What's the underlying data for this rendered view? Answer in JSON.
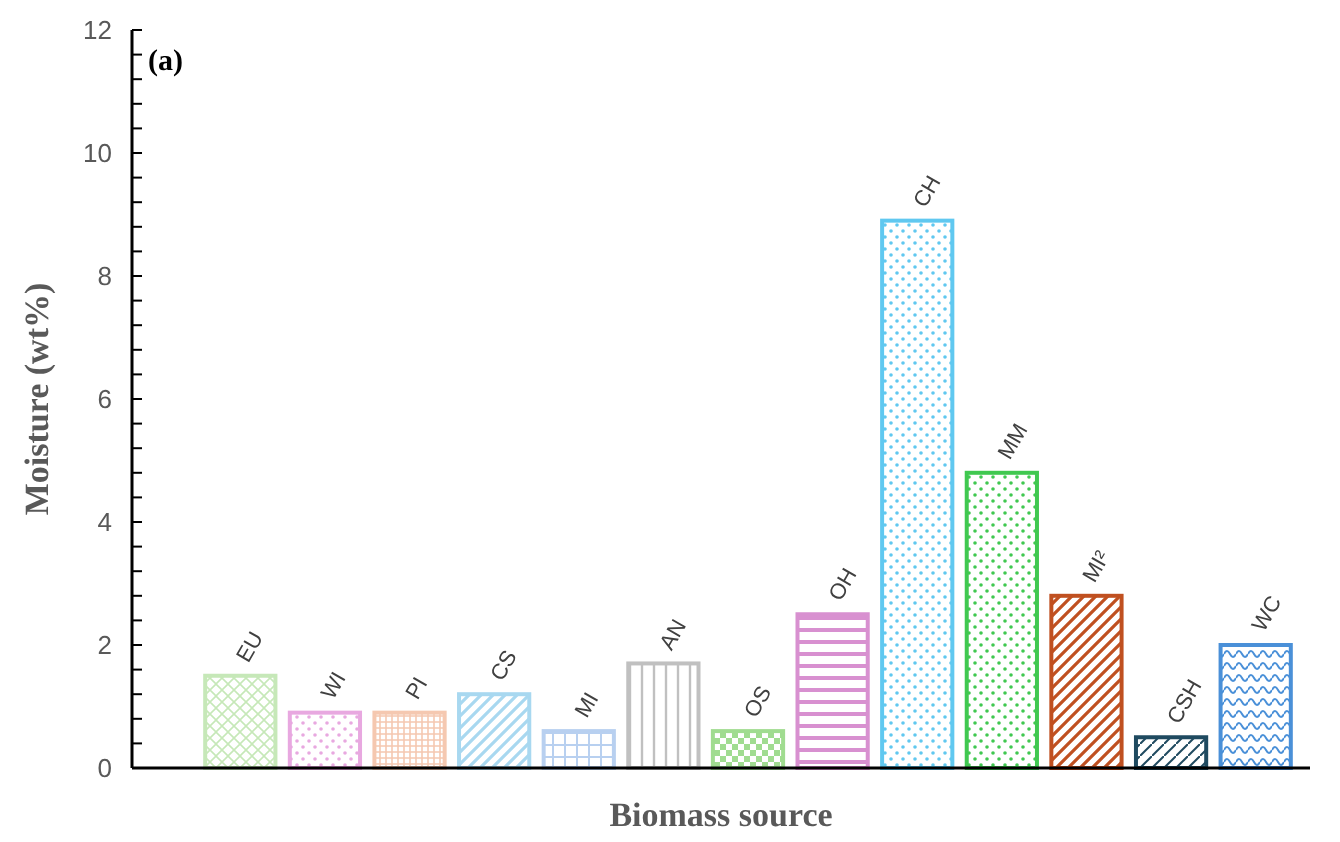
{
  "chart_data": {
    "type": "bar",
    "xlabel": "Biomass source",
    "ylabel": "Moisture (wt%)",
    "annotations": [
      "(a)"
    ],
    "categories": [
      "EU",
      "WI",
      "PI",
      "CS",
      "MI",
      "AN",
      "OS",
      "OH",
      "CH",
      "MM",
      "MI²",
      "CSH",
      "WC"
    ],
    "values": [
      1.5,
      0.9,
      0.9,
      1.2,
      0.6,
      1.7,
      0.6,
      2.5,
      8.9,
      4.8,
      2.8,
      0.5,
      2.0
    ],
    "colors": [
      "#c6e8b8",
      "#e8a8e0",
      "#f5c8b0",
      "#a8d8f0",
      "#b8d0f0",
      "#c0c0c0",
      "#a0dc90",
      "#d890d0",
      "#60c8f0",
      "#40c850",
      "#c05020",
      "#1f4a60",
      "#4a90d8"
    ],
    "ylim": [
      0,
      12
    ],
    "yticks": [
      0,
      {
        "value": 0.4,
        "label": null
      },
      {
        "value": 0.8,
        "label": null
      },
      {
        "value": 1.2,
        "label": null
      },
      {
        "value": 1.6,
        "label": null
      },
      2,
      {
        "value": 2.4,
        "label": null
      },
      {
        "value": 2.8,
        "label": null
      },
      {
        "value": 3.2,
        "label": null
      },
      {
        "value": 3.6,
        "label": null
      },
      4,
      {
        "value": 4.4,
        "label": null
      },
      {
        "value": 4.8,
        "label": null
      },
      {
        "value": 5.2,
        "label": null
      },
      {
        "value": 5.6,
        "label": null
      },
      6,
      {
        "value": 6.4,
        "label": null
      },
      {
        "value": 6.8,
        "label": null
      },
      {
        "value": 7.2,
        "label": null
      },
      {
        "value": 7.6,
        "label": null
      },
      8,
      {
        "value": 8.4,
        "label": null
      },
      {
        "value": 8.8,
        "label": null
      },
      {
        "value": 9.2,
        "label": null
      },
      {
        "value": 9.6,
        "label": null
      },
      10,
      {
        "value": 10.4,
        "label": null
      },
      {
        "value": 10.8,
        "label": null
      },
      {
        "value": 11.2,
        "label": null
      },
      {
        "value": 11.6,
        "label": null
      },
      12
    ],
    "grid": false
  }
}
